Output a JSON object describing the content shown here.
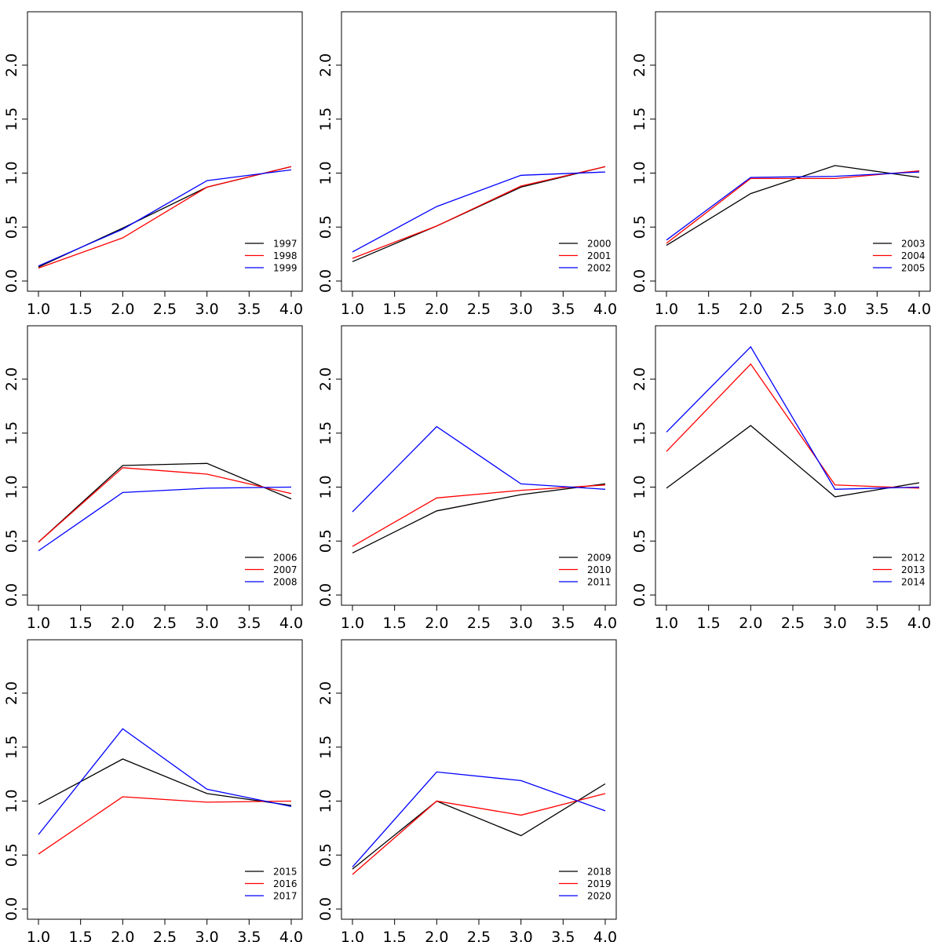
{
  "chart_data": [
    {
      "type": "line",
      "x": [
        1,
        2,
        3,
        4
      ],
      "xlim": [
        1,
        4
      ],
      "ylim": [
        0,
        2.4
      ],
      "xticks": [
        "1.0",
        "1.5",
        "2.0",
        "2.5",
        "3.0",
        "3.5",
        "4.0"
      ],
      "yticks": [
        "0.0",
        "0.5",
        "1.0",
        "1.5",
        "2.0"
      ],
      "legend_position": "bottom-right",
      "series": [
        {
          "name": "1997",
          "color": "#000000",
          "values": [
            0.13,
            0.49,
            0.87,
            1.06
          ]
        },
        {
          "name": "1998",
          "color": "#ff0000",
          "values": [
            0.12,
            0.4,
            0.87,
            1.06
          ]
        },
        {
          "name": "1999",
          "color": "#0000ff",
          "values": [
            0.14,
            0.48,
            0.93,
            1.03
          ]
        }
      ]
    },
    {
      "type": "line",
      "x": [
        1,
        2,
        3,
        4
      ],
      "xlim": [
        1,
        4
      ],
      "ylim": [
        0,
        2.4
      ],
      "xticks": [
        "1.0",
        "1.5",
        "2.0",
        "2.5",
        "3.0",
        "3.5",
        "4.0"
      ],
      "yticks": [
        "0.0",
        "0.5",
        "1.0",
        "1.5",
        "2.0"
      ],
      "legend_position": "bottom-right",
      "series": [
        {
          "name": "2000",
          "color": "#000000",
          "values": [
            0.18,
            0.51,
            0.87,
            1.06
          ]
        },
        {
          "name": "2001",
          "color": "#ff0000",
          "values": [
            0.21,
            0.51,
            0.88,
            1.06
          ]
        },
        {
          "name": "2002",
          "color": "#0000ff",
          "values": [
            0.27,
            0.69,
            0.98,
            1.01
          ]
        }
      ]
    },
    {
      "type": "line",
      "x": [
        1,
        2,
        3,
        4
      ],
      "xlim": [
        1,
        4
      ],
      "ylim": [
        0,
        2.4
      ],
      "xticks": [
        "1.0",
        "1.5",
        "2.0",
        "2.5",
        "3.0",
        "3.5",
        "4.0"
      ],
      "yticks": [
        "0.0",
        "0.5",
        "1.0",
        "1.5",
        "2.0"
      ],
      "legend_position": "bottom-right",
      "series": [
        {
          "name": "2003",
          "color": "#000000",
          "values": [
            0.33,
            0.81,
            1.07,
            0.96
          ]
        },
        {
          "name": "2004",
          "color": "#ff0000",
          "values": [
            0.35,
            0.95,
            0.95,
            1.02
          ]
        },
        {
          "name": "2005",
          "color": "#0000ff",
          "values": [
            0.38,
            0.96,
            0.97,
            1.01
          ]
        }
      ]
    },
    {
      "type": "line",
      "x": [
        1,
        2,
        3,
        4
      ],
      "xlim": [
        1,
        4
      ],
      "ylim": [
        0,
        2.4
      ],
      "xticks": [
        "1.0",
        "1.5",
        "2.0",
        "2.5",
        "3.0",
        "3.5",
        "4.0"
      ],
      "yticks": [
        "0.0",
        "0.5",
        "1.0",
        "1.5",
        "2.0"
      ],
      "legend_position": "bottom-right",
      "series": [
        {
          "name": "2006",
          "color": "#000000",
          "values": [
            0.49,
            1.2,
            1.22,
            0.89
          ]
        },
        {
          "name": "2007",
          "color": "#ff0000",
          "values": [
            0.49,
            1.18,
            1.12,
            0.94
          ]
        },
        {
          "name": "2008",
          "color": "#0000ff",
          "values": [
            0.41,
            0.95,
            0.99,
            1.0
          ]
        }
      ]
    },
    {
      "type": "line",
      "x": [
        1,
        2,
        3,
        4
      ],
      "xlim": [
        1,
        4
      ],
      "ylim": [
        0,
        2.4
      ],
      "xticks": [
        "1.0",
        "1.5",
        "2.0",
        "2.5",
        "3.0",
        "3.5",
        "4.0"
      ],
      "yticks": [
        "0.0",
        "0.5",
        "1.0",
        "1.5",
        "2.0"
      ],
      "legend_position": "bottom-right",
      "series": [
        {
          "name": "2009",
          "color": "#000000",
          "values": [
            0.39,
            0.78,
            0.93,
            1.03
          ]
        },
        {
          "name": "2010",
          "color": "#ff0000",
          "values": [
            0.45,
            0.9,
            0.97,
            1.02
          ]
        },
        {
          "name": "2011",
          "color": "#0000ff",
          "values": [
            0.77,
            1.56,
            1.03,
            0.98
          ]
        }
      ]
    },
    {
      "type": "line",
      "x": [
        1,
        2,
        3,
        4
      ],
      "xlim": [
        1,
        4
      ],
      "ylim": [
        0,
        2.4
      ],
      "xticks": [
        "1.0",
        "1.5",
        "2.0",
        "2.5",
        "3.0",
        "3.5",
        "4.0"
      ],
      "yticks": [
        "0.0",
        "0.5",
        "1.0",
        "1.5",
        "2.0"
      ],
      "legend_position": "bottom-right",
      "series": [
        {
          "name": "2012",
          "color": "#000000",
          "values": [
            0.99,
            1.57,
            0.91,
            1.04
          ]
        },
        {
          "name": "2013",
          "color": "#ff0000",
          "values": [
            1.33,
            2.14,
            1.02,
            0.99
          ]
        },
        {
          "name": "2014",
          "color": "#0000ff",
          "values": [
            1.51,
            2.3,
            0.98,
            1.0
          ]
        }
      ]
    },
    {
      "type": "line",
      "x": [
        1,
        2,
        3,
        4
      ],
      "xlim": [
        1,
        4
      ],
      "ylim": [
        0,
        2.4
      ],
      "xticks": [
        "1.0",
        "1.5",
        "2.0",
        "2.5",
        "3.0",
        "3.5",
        "4.0"
      ],
      "yticks": [
        "0.0",
        "0.5",
        "1.0",
        "1.5",
        "2.0"
      ],
      "legend_position": "bottom-right",
      "series": [
        {
          "name": "2015",
          "color": "#000000",
          "values": [
            0.97,
            1.39,
            1.07,
            0.96
          ]
        },
        {
          "name": "2016",
          "color": "#ff0000",
          "values": [
            0.51,
            1.04,
            0.99,
            1.0
          ]
        },
        {
          "name": "2017",
          "color": "#0000ff",
          "values": [
            0.69,
            1.67,
            1.11,
            0.95
          ]
        }
      ]
    },
    {
      "type": "line",
      "x": [
        1,
        2,
        3,
        4
      ],
      "xlim": [
        1,
        4
      ],
      "ylim": [
        0,
        2.4
      ],
      "xticks": [
        "1.0",
        "1.5",
        "2.0",
        "2.5",
        "3.0",
        "3.5",
        "4.0"
      ],
      "yticks": [
        "0.0",
        "0.5",
        "1.0",
        "1.5",
        "2.0"
      ],
      "legend_position": "bottom-right",
      "series": [
        {
          "name": "2018",
          "color": "#000000",
          "values": [
            0.37,
            1.0,
            0.68,
            1.16
          ]
        },
        {
          "name": "2019",
          "color": "#ff0000",
          "values": [
            0.32,
            1.0,
            0.87,
            1.07
          ]
        },
        {
          "name": "2020",
          "color": "#0000ff",
          "values": [
            0.39,
            1.27,
            1.19,
            0.91
          ]
        }
      ]
    }
  ]
}
